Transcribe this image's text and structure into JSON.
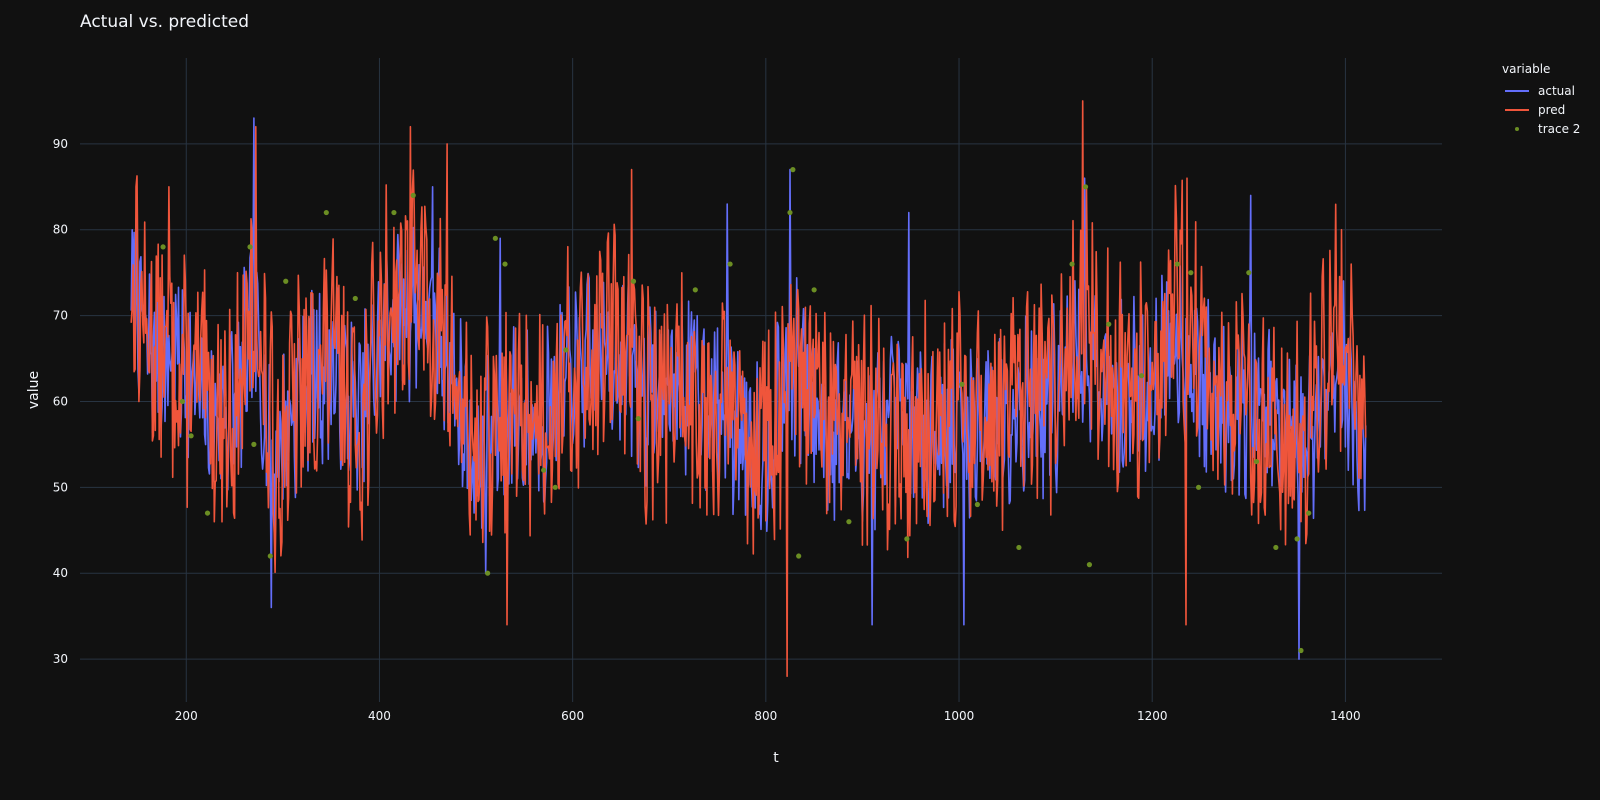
{
  "chart_data": {
    "type": "line",
    "title": "Actual vs. predicted",
    "xlabel": "t",
    "ylabel": "value",
    "xlim": [
      143,
      1421
    ],
    "ylim": [
      25,
      100
    ],
    "xlim_view": [
      90,
      1500
    ],
    "x_ticks": [
      200,
      400,
      600,
      800,
      1000,
      1200,
      1400
    ],
    "y_ticks": [
      30,
      40,
      50,
      60,
      70,
      80,
      90
    ],
    "grid": true,
    "legend_title": "variable",
    "legend_position": "top-right",
    "series": [
      {
        "name": "actual",
        "color": "#636efa",
        "seed": 7,
        "anchors": [
          [
            143,
            75
          ],
          [
            160,
            66
          ],
          [
            200,
            64
          ],
          [
            225,
            58
          ],
          [
            250,
            60
          ],
          [
            270,
            68
          ],
          [
            290,
            53
          ],
          [
            320,
            62
          ],
          [
            350,
            64
          ],
          [
            380,
            58
          ],
          [
            410,
            70
          ],
          [
            440,
            72
          ],
          [
            470,
            66
          ],
          [
            500,
            52
          ],
          [
            530,
            59
          ],
          [
            560,
            57
          ],
          [
            600,
            63
          ],
          [
            640,
            66
          ],
          [
            680,
            61
          ],
          [
            720,
            63
          ],
          [
            760,
            58
          ],
          [
            800,
            55
          ],
          [
            830,
            64
          ],
          [
            860,
            57
          ],
          [
            900,
            56
          ],
          [
            940,
            57
          ],
          [
            980,
            57
          ],
          [
            1020,
            58
          ],
          [
            1060,
            60
          ],
          [
            1100,
            60
          ],
          [
            1130,
            67
          ],
          [
            1160,
            60
          ],
          [
            1200,
            62
          ],
          [
            1230,
            68
          ],
          [
            1260,
            60
          ],
          [
            1300,
            60
          ],
          [
            1330,
            56
          ],
          [
            1360,
            55
          ],
          [
            1390,
            66
          ],
          [
            1421,
            53
          ]
        ],
        "spikes": [
          [
            270,
            93
          ],
          [
            288,
            36
          ],
          [
            455,
            85
          ],
          [
            510,
            40
          ],
          [
            525,
            79
          ],
          [
            760,
            83
          ],
          [
            825,
            87
          ],
          [
            910,
            34
          ],
          [
            948,
            82
          ],
          [
            1005,
            34
          ],
          [
            1130,
            86
          ],
          [
            1302,
            84
          ],
          [
            1352,
            30
          ]
        ]
      },
      {
        "name": "pred",
        "color": "#ef553b",
        "seed": 13,
        "anchors": [
          [
            143,
            75
          ],
          [
            160,
            68
          ],
          [
            200,
            63
          ],
          [
            225,
            60
          ],
          [
            250,
            58
          ],
          [
            270,
            70
          ],
          [
            290,
            54
          ],
          [
            320,
            61
          ],
          [
            350,
            66
          ],
          [
            380,
            57
          ],
          [
            410,
            72
          ],
          [
            440,
            74
          ],
          [
            470,
            65
          ],
          [
            500,
            54
          ],
          [
            530,
            58
          ],
          [
            560,
            59
          ],
          [
            600,
            63
          ],
          [
            640,
            68
          ],
          [
            680,
            60
          ],
          [
            720,
            62
          ],
          [
            760,
            59
          ],
          [
            800,
            56
          ],
          [
            830,
            62
          ],
          [
            860,
            58
          ],
          [
            900,
            57
          ],
          [
            940,
            56
          ],
          [
            980,
            57
          ],
          [
            1020,
            58
          ],
          [
            1060,
            59
          ],
          [
            1100,
            61
          ],
          [
            1130,
            72
          ],
          [
            1160,
            61
          ],
          [
            1200,
            63
          ],
          [
            1230,
            72
          ],
          [
            1260,
            61
          ],
          [
            1300,
            59
          ],
          [
            1330,
            58
          ],
          [
            1360,
            57
          ],
          [
            1390,
            70
          ],
          [
            1421,
            60
          ]
        ],
        "spikes": [
          [
            148,
            85
          ],
          [
            182,
            85
          ],
          [
            272,
            92
          ],
          [
            432,
            92
          ],
          [
            470,
            90
          ],
          [
            532,
            34
          ],
          [
            661,
            87
          ],
          [
            822,
            28
          ],
          [
            1128,
            95
          ],
          [
            1236,
            86
          ],
          [
            1235,
            34
          ],
          [
            1396,
            80
          ]
        ]
      },
      {
        "name": "trace 2",
        "color": "#6b8e23",
        "mode": "markers",
        "points": [
          [
            176,
            78
          ],
          [
            196,
            60
          ],
          [
            205,
            56
          ],
          [
            222,
            47
          ],
          [
            266,
            78
          ],
          [
            270,
            55
          ],
          [
            287,
            42
          ],
          [
            303,
            74
          ],
          [
            345,
            82
          ],
          [
            375,
            72
          ],
          [
            415,
            82
          ],
          [
            435,
            84
          ],
          [
            512,
            40
          ],
          [
            520,
            79
          ],
          [
            530,
            76
          ],
          [
            570,
            52
          ],
          [
            582,
            50
          ],
          [
            593,
            66
          ],
          [
            663,
            74
          ],
          [
            668,
            58
          ],
          [
            727,
            73
          ],
          [
            763,
            76
          ],
          [
            828,
            87
          ],
          [
            825,
            82
          ],
          [
            834,
            42
          ],
          [
            850,
            73
          ],
          [
            886,
            46
          ],
          [
            946,
            44
          ],
          [
            1003,
            62
          ],
          [
            1019,
            48
          ],
          [
            1062,
            43
          ],
          [
            1117,
            76
          ],
          [
            1131,
            85
          ],
          [
            1135,
            41
          ],
          [
            1155,
            69
          ],
          [
            1189,
            63
          ],
          [
            1226,
            76
          ],
          [
            1240,
            75
          ],
          [
            1248,
            50
          ],
          [
            1300,
            75
          ],
          [
            1308,
            53
          ],
          [
            1328,
            43
          ],
          [
            1350,
            44
          ],
          [
            1354,
            31
          ],
          [
            1362,
            47
          ]
        ]
      }
    ]
  }
}
